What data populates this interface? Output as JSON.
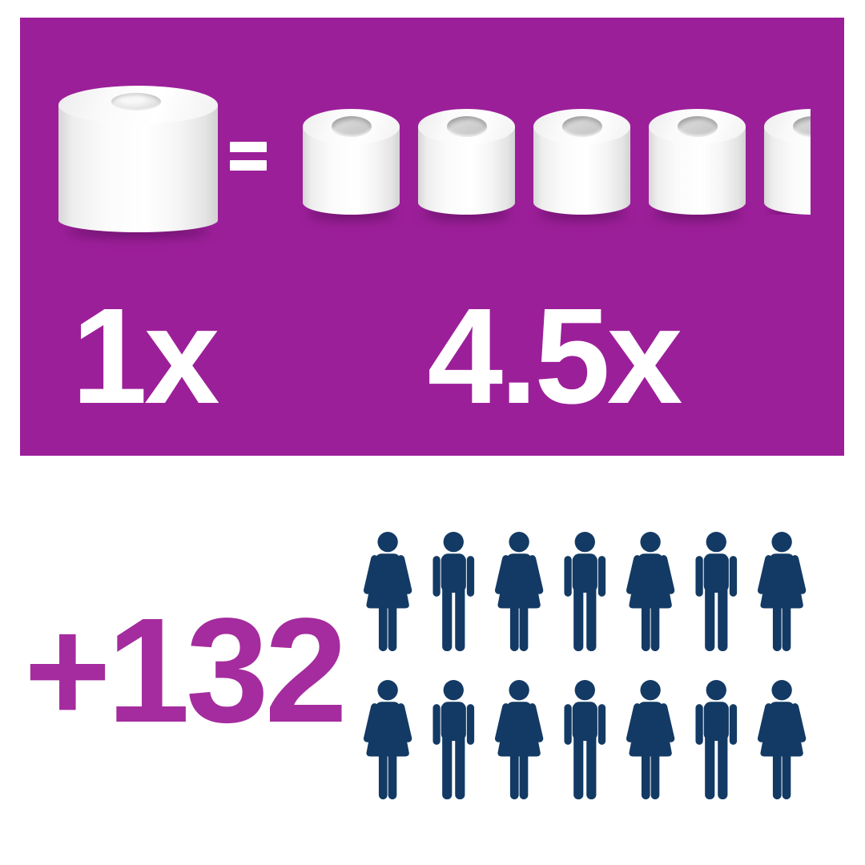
{
  "colors": {
    "background": "#ffffff",
    "panel_purple": "#9C1F9A",
    "accent_purple": "#A42C9E",
    "person_navy": "#133A64",
    "label_white": "#ffffff",
    "roll_white": "#ffffff",
    "roll_shade_gray": "#d2d2d2",
    "roll_hole_gray": "#c9c9c9"
  },
  "comparison_panel": {
    "left_label": "1x",
    "equals_sign": "=",
    "right_label": "4.5x",
    "left_roll_count": 1,
    "right_rolls_full": 4,
    "right_rolls_half": true,
    "left_roll_type": "large-coreless-roll",
    "right_roll_type": "standard-roll"
  },
  "people_section": {
    "count_label": "+132",
    "rows": [
      [
        "female",
        "male",
        "female",
        "male",
        "female",
        "male",
        "female"
      ],
      [
        "female",
        "male",
        "female",
        "male",
        "female",
        "male",
        "female"
      ]
    ]
  }
}
